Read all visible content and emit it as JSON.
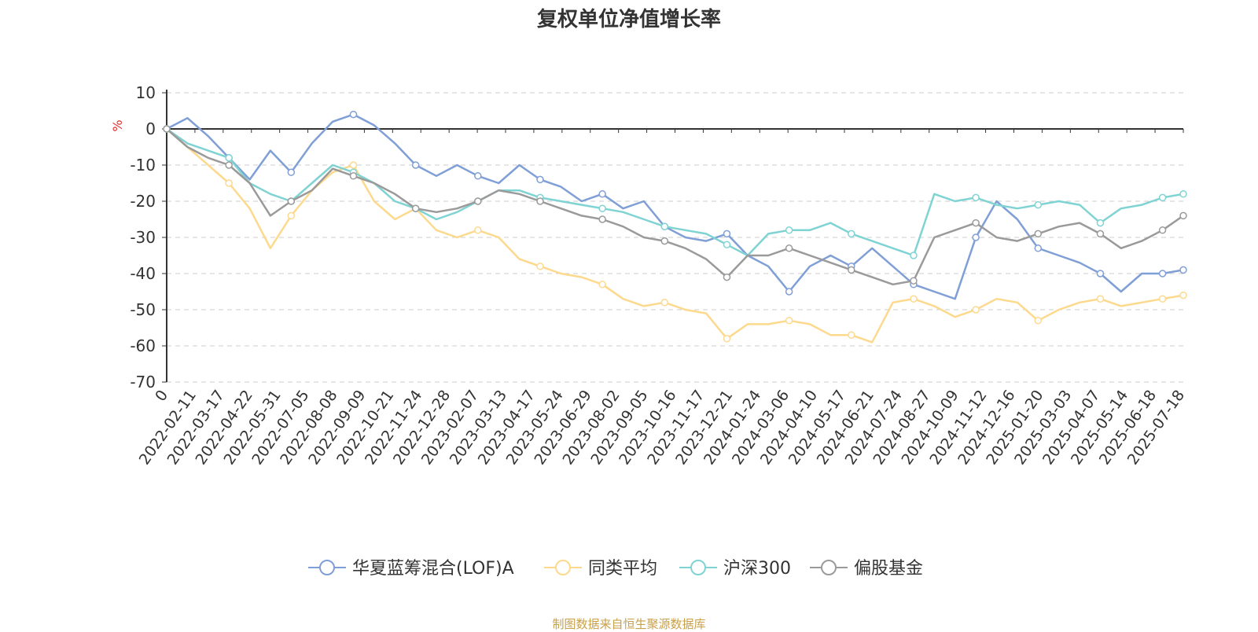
{
  "chart_data": {
    "type": "line",
    "title": "复权单位净值增长率",
    "ylabel": "%",
    "ylim": [
      -70,
      10
    ],
    "y_ticks": [
      10,
      0,
      -10,
      -20,
      -30,
      -40,
      -50,
      -60,
      -70
    ],
    "grid": true,
    "legend_position": "bottom",
    "x_tick_labels": [
      "0",
      "2022-02-11",
      "2022-03-17",
      "2022-04-22",
      "2022-05-31",
      "2022-07-05",
      "2022-08-08",
      "2022-09-09",
      "2022-10-21",
      "2022-11-24",
      "2022-12-28",
      "2023-02-07",
      "2023-03-13",
      "2023-04-17",
      "2023-05-24",
      "2023-06-29",
      "2023-08-02",
      "2023-09-05",
      "2023-10-16",
      "2023-11-17",
      "2023-12-21",
      "2024-01-24",
      "2024-03-06",
      "2024-04-10",
      "2024-05-17",
      "2024-06-21",
      "2024-07-24",
      "2024-08-27",
      "2024-10-09",
      "2024-11-12",
      "2024-12-16",
      "2025-01-20",
      "2025-03-03",
      "2025-04-07",
      "2025-05-14",
      "2025-06-18",
      "2025-07-18"
    ],
    "series": [
      {
        "name": "华夏蓝筹混合(LOF)A",
        "color": "#7f9fd6",
        "values": [
          0,
          3,
          -2,
          -8,
          -14,
          -6,
          -12,
          -4,
          2,
          4,
          1,
          -4,
          -10,
          -13,
          -10,
          -13,
          -15,
          -10,
          -14,
          -16,
          -20,
          -18,
          -22,
          -20,
          -27,
          -30,
          -31,
          -29,
          -35,
          -38,
          -45,
          -38,
          -35,
          -38,
          -33,
          -38,
          -43,
          -45,
          -47,
          -30,
          -20,
          -25,
          -33,
          -35,
          -37,
          -40,
          -45,
          -40,
          -40,
          -39
        ]
      },
      {
        "name": "同类平均",
        "color": "#fdd98e",
        "values": [
          0,
          -5,
          -10,
          -15,
          -22,
          -33,
          -24,
          -17,
          -12,
          -10,
          -20,
          -25,
          -22,
          -28,
          -30,
          -28,
          -30,
          -36,
          -38,
          -40,
          -41,
          -43,
          -47,
          -49,
          -48,
          -50,
          -51,
          -58,
          -54,
          -54,
          -53,
          -54,
          -57,
          -57,
          -59,
          -48,
          -47,
          -49,
          -52,
          -50,
          -47,
          -48,
          -53,
          -50,
          -48,
          -47,
          -49,
          -48,
          -47,
          -46
        ]
      },
      {
        "name": "沪深300",
        "color": "#80d3d3",
        "values": [
          0,
          -4,
          -6,
          -8,
          -15,
          -18,
          -20,
          -15,
          -10,
          -12,
          -15,
          -20,
          -22,
          -25,
          -23,
          -20,
          -17,
          -17,
          -19,
          -20,
          -21,
          -22,
          -23,
          -25,
          -27,
          -28,
          -29,
          -32,
          -35,
          -29,
          -28,
          -28,
          -26,
          -29,
          -31,
          -33,
          -35,
          -18,
          -20,
          -19,
          -21,
          -22,
          -21,
          -20,
          -21,
          -26,
          -22,
          -21,
          -19,
          -18
        ]
      },
      {
        "name": "偏股基金",
        "color": "#9a9a9a",
        "values": [
          0,
          -5,
          -8,
          -10,
          -15,
          -24,
          -20,
          -17,
          -11,
          -13,
          -15,
          -18,
          -22,
          -23,
          -22,
          -20,
          -17,
          -18,
          -20,
          -22,
          -24,
          -25,
          -27,
          -30,
          -31,
          -33,
          -36,
          -41,
          -35,
          -35,
          -33,
          -35,
          -37,
          -39,
          -41,
          -43,
          -42,
          -30,
          -28,
          -26,
          -30,
          -31,
          -29,
          -27,
          -26,
          -29,
          -33,
          -31,
          -28,
          -24
        ]
      }
    ]
  },
  "footer": {
    "source": "制图数据来自恒生聚源数据库"
  }
}
